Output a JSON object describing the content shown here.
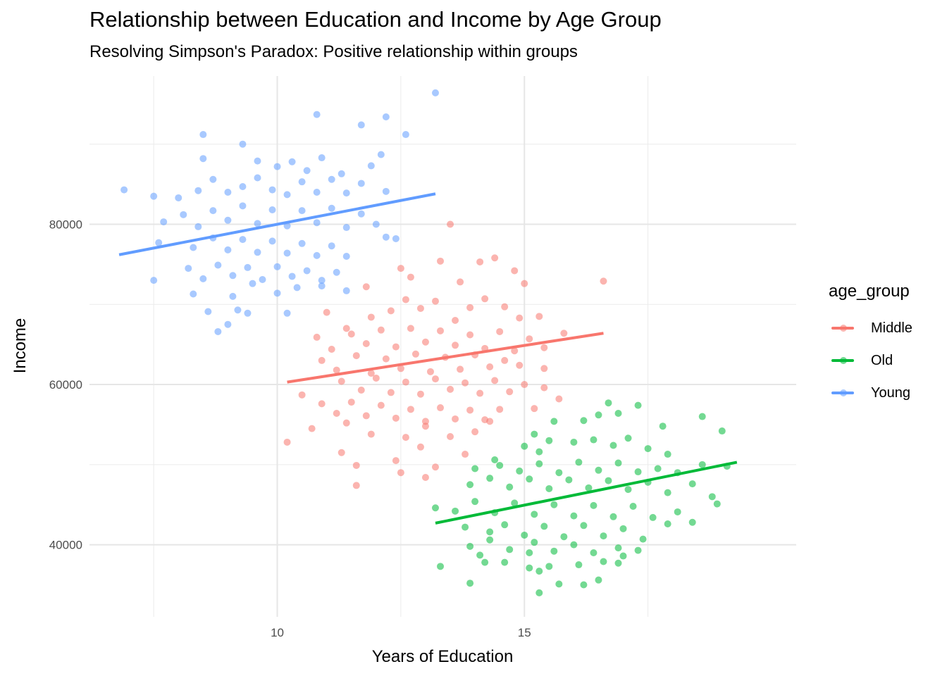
{
  "chart_data": {
    "type": "scatter",
    "title": "Relationship between Education and Income by Age Group",
    "subtitle": "Resolving Simpson's Paradox: Positive relationship within groups",
    "xlabel": "Years of Education",
    "ylabel": "Income",
    "xlim": [
      6.2,
      20.5
    ],
    "ylim": [
      31000,
      98500
    ],
    "x_ticks": [
      10,
      15
    ],
    "y_ticks": [
      40000,
      60000,
      80000
    ],
    "grid": true,
    "legend": {
      "title": "age_group",
      "position": "right"
    },
    "series": [
      {
        "name": "Middle",
        "color": "#F8766D",
        "trend": {
          "x": [
            10.2,
            16.6
          ],
          "y": [
            60300,
            66400
          ]
        },
        "points": [
          [
            13.5,
            80000
          ],
          [
            12.5,
            74500
          ],
          [
            13.3,
            75400
          ],
          [
            14.1,
            75300
          ],
          [
            14.4,
            75800
          ],
          [
            14.8,
            74200
          ],
          [
            12.7,
            73400
          ],
          [
            13.7,
            72800
          ],
          [
            15.0,
            72600
          ],
          [
            11.8,
            72200
          ],
          [
            16.6,
            72900
          ],
          [
            11.0,
            69000
          ],
          [
            11.4,
            67000
          ],
          [
            11.9,
            68400
          ],
          [
            12.3,
            69200
          ],
          [
            12.6,
            70600
          ],
          [
            12.9,
            69500
          ],
          [
            13.2,
            70400
          ],
          [
            13.6,
            68000
          ],
          [
            13.9,
            69600
          ],
          [
            14.2,
            70700
          ],
          [
            14.6,
            69700
          ],
          [
            14.9,
            68300
          ],
          [
            15.3,
            68500
          ],
          [
            10.8,
            65900
          ],
          [
            11.1,
            64400
          ],
          [
            11.5,
            66300
          ],
          [
            11.8,
            65100
          ],
          [
            12.1,
            66800
          ],
          [
            12.4,
            64700
          ],
          [
            12.7,
            67000
          ],
          [
            13.0,
            65300
          ],
          [
            13.3,
            66700
          ],
          [
            13.6,
            64900
          ],
          [
            13.9,
            66200
          ],
          [
            14.2,
            64500
          ],
          [
            14.5,
            66600
          ],
          [
            14.8,
            64200
          ],
          [
            15.1,
            65700
          ],
          [
            15.4,
            64600
          ],
          [
            15.8,
            66400
          ],
          [
            10.9,
            63000
          ],
          [
            11.2,
            61800
          ],
          [
            11.6,
            63600
          ],
          [
            11.9,
            61400
          ],
          [
            12.2,
            63200
          ],
          [
            12.5,
            62000
          ],
          [
            12.8,
            63800
          ],
          [
            13.1,
            61600
          ],
          [
            13.4,
            63400
          ],
          [
            13.7,
            61900
          ],
          [
            14.0,
            63700
          ],
          [
            14.3,
            62200
          ],
          [
            14.6,
            63000
          ],
          [
            14.9,
            62400
          ],
          [
            15.4,
            62000
          ],
          [
            11.3,
            60400
          ],
          [
            11.7,
            59300
          ],
          [
            12.0,
            60800
          ],
          [
            12.3,
            59000
          ],
          [
            12.6,
            60300
          ],
          [
            12.9,
            58800
          ],
          [
            13.2,
            60700
          ],
          [
            13.5,
            59400
          ],
          [
            13.8,
            60200
          ],
          [
            14.1,
            58900
          ],
          [
            14.4,
            60500
          ],
          [
            14.7,
            59100
          ],
          [
            15.0,
            60000
          ],
          [
            15.4,
            59600
          ],
          [
            15.7,
            58200
          ],
          [
            10.5,
            58700
          ],
          [
            10.9,
            57600
          ],
          [
            11.2,
            56400
          ],
          [
            11.5,
            57800
          ],
          [
            11.8,
            56100
          ],
          [
            12.1,
            57400
          ],
          [
            12.4,
            55800
          ],
          [
            12.7,
            56900
          ],
          [
            13.0,
            55400
          ],
          [
            13.3,
            57100
          ],
          [
            13.6,
            55700
          ],
          [
            13.9,
            56800
          ],
          [
            14.2,
            55600
          ],
          [
            14.5,
            56900
          ],
          [
            15.2,
            57000
          ],
          [
            10.7,
            54500
          ],
          [
            11.4,
            55200
          ],
          [
            11.9,
            53800
          ],
          [
            12.6,
            53400
          ],
          [
            13.0,
            54800
          ],
          [
            13.5,
            53500
          ],
          [
            14.0,
            54100
          ],
          [
            14.3,
            55400
          ],
          [
            10.2,
            52800
          ],
          [
            11.3,
            51500
          ],
          [
            12.4,
            50500
          ],
          [
            12.9,
            52200
          ],
          [
            13.8,
            51300
          ],
          [
            11.6,
            49900
          ],
          [
            12.5,
            49000
          ],
          [
            13.2,
            49700
          ],
          [
            13.0,
            48400
          ],
          [
            11.6,
            47400
          ]
        ]
      },
      {
        "name": "Old",
        "color": "#00BA38",
        "trend": {
          "x": [
            13.2,
            19.3
          ],
          "y": [
            42700,
            50300
          ]
        },
        "points": [
          [
            16.7,
            57700
          ],
          [
            17.3,
            57400
          ],
          [
            16.2,
            55500
          ],
          [
            15.6,
            55400
          ],
          [
            17.8,
            54800
          ],
          [
            16.5,
            56200
          ],
          [
            16.9,
            56400
          ],
          [
            19.0,
            54200
          ],
          [
            18.6,
            56000
          ],
          [
            15.2,
            53800
          ],
          [
            15.0,
            52300
          ],
          [
            15.5,
            53000
          ],
          [
            16.0,
            52800
          ],
          [
            16.4,
            53100
          ],
          [
            16.8,
            52400
          ],
          [
            17.1,
            53300
          ],
          [
            17.5,
            52000
          ],
          [
            17.9,
            51300
          ],
          [
            15.3,
            51600
          ],
          [
            14.4,
            50600
          ],
          [
            14.0,
            49500
          ],
          [
            14.5,
            49900
          ],
          [
            14.9,
            49200
          ],
          [
            15.3,
            50100
          ],
          [
            15.7,
            49000
          ],
          [
            16.1,
            50300
          ],
          [
            16.5,
            49300
          ],
          [
            16.9,
            50200
          ],
          [
            17.3,
            49100
          ],
          [
            17.7,
            49500
          ],
          [
            18.1,
            49000
          ],
          [
            18.6,
            50000
          ],
          [
            19.1,
            49800
          ],
          [
            13.9,
            47500
          ],
          [
            14.3,
            48300
          ],
          [
            14.7,
            47200
          ],
          [
            15.1,
            48200
          ],
          [
            15.5,
            47000
          ],
          [
            15.9,
            48100
          ],
          [
            16.3,
            47100
          ],
          [
            16.7,
            48000
          ],
          [
            17.1,
            46900
          ],
          [
            17.5,
            47800
          ],
          [
            17.9,
            46500
          ],
          [
            18.4,
            47600
          ],
          [
            18.8,
            46000
          ],
          [
            13.2,
            44600
          ],
          [
            13.6,
            44200
          ],
          [
            14.0,
            45400
          ],
          [
            14.4,
            44000
          ],
          [
            14.8,
            45200
          ],
          [
            15.2,
            43800
          ],
          [
            15.6,
            45000
          ],
          [
            16.0,
            43600
          ],
          [
            16.4,
            44900
          ],
          [
            16.8,
            43500
          ],
          [
            17.2,
            44800
          ],
          [
            17.6,
            43400
          ],
          [
            18.1,
            44100
          ],
          [
            18.9,
            45100
          ],
          [
            13.8,
            42200
          ],
          [
            14.3,
            41600
          ],
          [
            14.6,
            42500
          ],
          [
            15.0,
            41200
          ],
          [
            15.4,
            42300
          ],
          [
            15.8,
            41000
          ],
          [
            16.2,
            42400
          ],
          [
            16.6,
            41100
          ],
          [
            17.0,
            42000
          ],
          [
            17.4,
            40700
          ],
          [
            17.9,
            42600
          ],
          [
            18.4,
            42800
          ],
          [
            13.9,
            39800
          ],
          [
            14.3,
            40600
          ],
          [
            14.7,
            39400
          ],
          [
            15.2,
            40300
          ],
          [
            15.6,
            39200
          ],
          [
            16.0,
            40000
          ],
          [
            16.4,
            39000
          ],
          [
            16.9,
            39600
          ],
          [
            17.3,
            39300
          ],
          [
            14.1,
            38700
          ],
          [
            15.1,
            39000
          ],
          [
            17.0,
            38600
          ],
          [
            13.3,
            37300
          ],
          [
            14.2,
            37800
          ],
          [
            14.6,
            37800
          ],
          [
            15.1,
            37100
          ],
          [
            15.5,
            37300
          ],
          [
            16.1,
            37500
          ],
          [
            16.6,
            37900
          ],
          [
            16.9,
            37700
          ],
          [
            13.9,
            35200
          ],
          [
            15.3,
            36700
          ],
          [
            15.7,
            35100
          ],
          [
            16.2,
            35000
          ],
          [
            16.5,
            35600
          ],
          [
            15.3,
            34000
          ]
        ]
      },
      {
        "name": "Young",
        "color": "#619CFF",
        "trend": {
          "x": [
            6.8,
            13.2
          ],
          "y": [
            76200,
            83800
          ]
        },
        "points": [
          [
            13.2,
            96400
          ],
          [
            10.8,
            93700
          ],
          [
            11.7,
            92400
          ],
          [
            12.2,
            93400
          ],
          [
            8.5,
            91200
          ],
          [
            12.6,
            91200
          ],
          [
            9.3,
            90000
          ],
          [
            8.5,
            88200
          ],
          [
            9.6,
            87900
          ],
          [
            10.0,
            87200
          ],
          [
            10.3,
            87800
          ],
          [
            10.6,
            86700
          ],
          [
            10.9,
            88300
          ],
          [
            11.3,
            86300
          ],
          [
            11.9,
            87300
          ],
          [
            12.1,
            88700
          ],
          [
            7.5,
            83500
          ],
          [
            8.0,
            83300
          ],
          [
            8.4,
            84200
          ],
          [
            8.7,
            85600
          ],
          [
            9.0,
            84000
          ],
          [
            9.3,
            84700
          ],
          [
            9.6,
            85800
          ],
          [
            9.9,
            84300
          ],
          [
            10.2,
            83700
          ],
          [
            10.5,
            85300
          ],
          [
            10.8,
            84000
          ],
          [
            11.1,
            85600
          ],
          [
            11.4,
            83900
          ],
          [
            11.7,
            85100
          ],
          [
            12.2,
            84100
          ],
          [
            6.9,
            84300
          ],
          [
            7.7,
            80300
          ],
          [
            8.1,
            81200
          ],
          [
            8.4,
            79700
          ],
          [
            8.7,
            81700
          ],
          [
            9.0,
            80500
          ],
          [
            9.3,
            82300
          ],
          [
            9.6,
            80100
          ],
          [
            9.9,
            81800
          ],
          [
            10.2,
            79800
          ],
          [
            10.5,
            81700
          ],
          [
            10.8,
            80200
          ],
          [
            11.1,
            82000
          ],
          [
            11.4,
            79600
          ],
          [
            11.7,
            81300
          ],
          [
            12.0,
            80000
          ],
          [
            12.4,
            78200
          ],
          [
            7.6,
            77700
          ],
          [
            8.3,
            77100
          ],
          [
            8.7,
            78300
          ],
          [
            9.0,
            76800
          ],
          [
            9.3,
            78100
          ],
          [
            9.6,
            76500
          ],
          [
            9.9,
            77900
          ],
          [
            10.2,
            76400
          ],
          [
            10.5,
            77600
          ],
          [
            10.8,
            76100
          ],
          [
            11.1,
            77300
          ],
          [
            11.4,
            76000
          ],
          [
            12.2,
            78400
          ],
          [
            8.2,
            74500
          ],
          [
            8.5,
            73200
          ],
          [
            8.8,
            74900
          ],
          [
            9.1,
            73600
          ],
          [
            9.4,
            74600
          ],
          [
            9.7,
            73100
          ],
          [
            10.0,
            74700
          ],
          [
            10.3,
            73500
          ],
          [
            10.6,
            74200
          ],
          [
            10.9,
            73000
          ],
          [
            11.2,
            74000
          ],
          [
            7.5,
            73000
          ],
          [
            8.3,
            71300
          ],
          [
            9.1,
            71000
          ],
          [
            9.5,
            72600
          ],
          [
            10.0,
            71400
          ],
          [
            10.4,
            72100
          ],
          [
            10.9,
            72300
          ],
          [
            11.4,
            71700
          ],
          [
            8.6,
            69100
          ],
          [
            9.2,
            69300
          ],
          [
            9.4,
            68900
          ],
          [
            10.2,
            68900
          ],
          [
            9.0,
            67500
          ],
          [
            8.8,
            66600
          ]
        ]
      }
    ]
  }
}
